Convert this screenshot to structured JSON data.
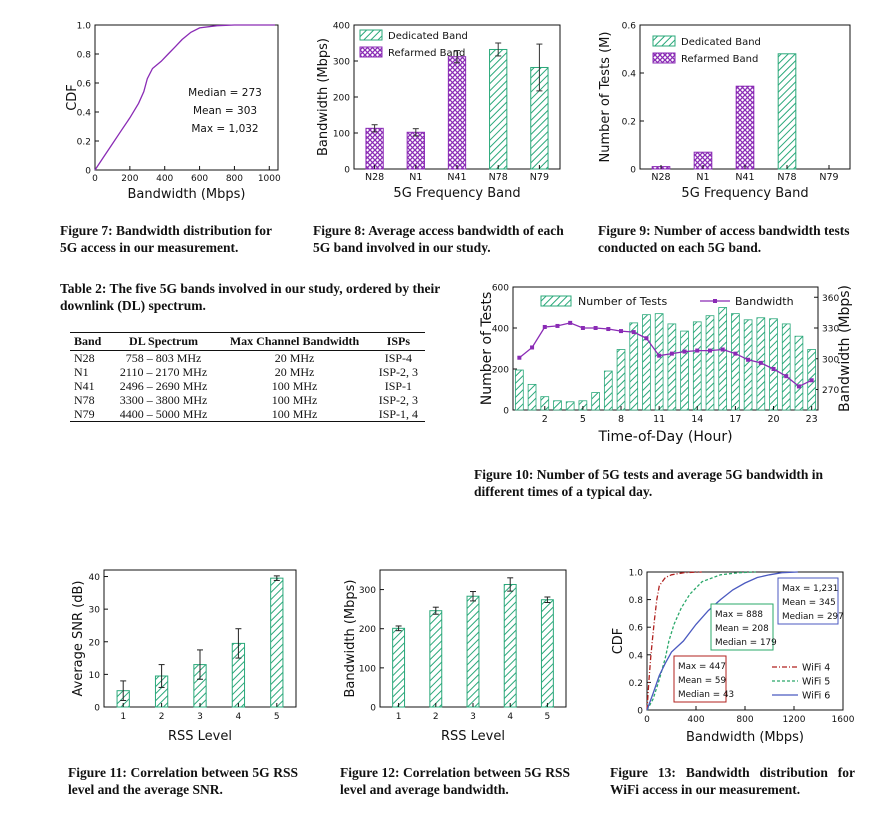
{
  "captions": {
    "fig7": "Figure 7: Bandwidth distribution for 5G access in our measurement.",
    "fig8": "Figure 8: Average access bandwidth of each 5G band involved in our study.",
    "fig9": "Figure 9: Number of access bandwidth tests conducted on each 5G band.",
    "table2": "Table 2: The five 5G bands involved in our study, ordered by their downlink (DL) spectrum.",
    "fig10": "Figure 10: Number of 5G tests and average 5G bandwidth in different times of a typical day.",
    "fig11": "Figure 11: Correlation between 5G RSS level and the average SNR.",
    "fig12": "Figure 12: Correlation between 5G RSS level and average bandwidth.",
    "fig13": "Figure 13: Bandwidth distribution for WiFi access in our measurement."
  },
  "table2": {
    "headers": [
      "Band",
      "DL Spectrum",
      "Max Channel Bandwidth",
      "ISPs"
    ],
    "rows": [
      [
        "N28",
        "758 – 803 MHz",
        "20 MHz",
        "ISP-4"
      ],
      [
        "N1",
        "2110 – 2170 MHz",
        "20 MHz",
        "ISP-2, 3"
      ],
      [
        "N41",
        "2496 – 2690 MHz",
        "100 MHz",
        "ISP-1"
      ],
      [
        "N78",
        "3300 – 3800 MHz",
        "100 MHz",
        "ISP-2, 3"
      ],
      [
        "N79",
        "4400 – 5000 MHz",
        "100 MHz",
        "ISP-1, 4"
      ]
    ]
  },
  "colors": {
    "green": "#2aa87a",
    "purple": "#8a2bb5"
  },
  "chart_data": [
    {
      "id": "fig7",
      "type": "line",
      "xlabel": "Bandwidth (Mbps)",
      "ylabel": "CDF",
      "xlim": [
        0,
        1050
      ],
      "ylim": [
        0,
        1.0
      ],
      "xticks": [
        0,
        200,
        400,
        600,
        800,
        1000
      ],
      "yticks": [
        0,
        0.2,
        0.4,
        0.6,
        0.8,
        1.0
      ],
      "ytick_labels": [
        "0",
        "0.2",
        "0.4",
        "0.6",
        "0.8",
        "1.0"
      ],
      "x": [
        0,
        50,
        100,
        150,
        200,
        250,
        280,
        300,
        330,
        380,
        420,
        460,
        500,
        550,
        600,
        700,
        800,
        900,
        1032
      ],
      "y": [
        0,
        0.09,
        0.18,
        0.27,
        0.36,
        0.46,
        0.54,
        0.63,
        0.7,
        0.75,
        0.8,
        0.85,
        0.9,
        0.95,
        0.98,
        0.995,
        1.0,
        1.0,
        1.0
      ],
      "annotations": [
        "Median = 273",
        "Mean = 303",
        "Max = 1,032"
      ],
      "color": "#8a2bb5"
    },
    {
      "id": "fig8",
      "type": "bar",
      "xlabel": "5G Frequency Band",
      "ylabel": "Bandwidth (Mbps)",
      "ylim": [
        0,
        400
      ],
      "yticks": [
        0,
        100,
        200,
        300,
        400
      ],
      "categories": [
        "N28",
        "N1",
        "N41",
        "N78",
        "N79"
      ],
      "values": [
        113,
        102,
        312,
        332,
        282
      ],
      "errors": [
        10,
        10,
        17,
        18,
        65
      ],
      "band_type": [
        "refarmed",
        "refarmed",
        "refarmed",
        "dedicated",
        "dedicated"
      ],
      "legend": [
        "Dedicated Band",
        "Refarmed Band"
      ]
    },
    {
      "id": "fig9",
      "type": "bar",
      "xlabel": "5G Frequency Band",
      "ylabel": "Number of Tests (M)",
      "ylim": [
        0,
        0.6
      ],
      "yticks": [
        0,
        0.2,
        0.4,
        0.6
      ],
      "ytick_labels": [
        "0",
        "0.2",
        "0.4",
        "0.6"
      ],
      "categories": [
        "N28",
        "N1",
        "N41",
        "N78",
        "N79"
      ],
      "values": [
        0.01,
        0.07,
        0.345,
        0.48,
        0
      ],
      "band_type": [
        "refarmed",
        "refarmed",
        "refarmed",
        "dedicated",
        "dedicated"
      ],
      "legend": [
        "Dedicated Band",
        "Refarmed Band"
      ]
    },
    {
      "id": "fig10",
      "type": "bar",
      "xlabel": "Time-of-Day (Hour)",
      "ylabel": "Number of Tests",
      "y2label": "Bandwidth (Mbps)",
      "ylim": [
        0,
        600
      ],
      "yticks": [
        0,
        200,
        400,
        600
      ],
      "y2lim": [
        250,
        370
      ],
      "y2ticks": [
        270,
        300,
        330,
        360
      ],
      "xticks": [
        2,
        5,
        8,
        11,
        14,
        17,
        20,
        23
      ],
      "hours": [
        0,
        1,
        2,
        3,
        4,
        5,
        6,
        7,
        8,
        9,
        10,
        11,
        12,
        13,
        14,
        15,
        16,
        17,
        18,
        19,
        20,
        21,
        22,
        23
      ],
      "tests": [
        195,
        125,
        65,
        45,
        40,
        45,
        85,
        190,
        295,
        425,
        465,
        470,
        420,
        385,
        430,
        460,
        500,
        470,
        440,
        450,
        445,
        420,
        360,
        295
      ],
      "bandwidth": [
        301,
        311,
        331,
        332,
        335,
        330,
        330,
        329,
        327,
        326,
        320,
        303,
        305,
        307,
        308,
        308,
        309,
        305,
        299,
        296,
        290,
        283,
        273,
        279
      ],
      "legend": [
        "Number of Tests",
        "Bandwidth"
      ]
    },
    {
      "id": "fig11",
      "type": "bar",
      "xlabel": "RSS Level",
      "ylabel": "Average SNR (dB)",
      "ylim": [
        0,
        42
      ],
      "yticks": [
        0,
        10,
        20,
        30,
        40
      ],
      "categories": [
        "1",
        "2",
        "3",
        "4",
        "5"
      ],
      "values": [
        5,
        9.5,
        13,
        19.5,
        39.5
      ],
      "errors": [
        3,
        3.5,
        4.5,
        4.5,
        0.7
      ]
    },
    {
      "id": "fig12",
      "type": "bar",
      "xlabel": "RSS Level",
      "ylabel": "Bandwidth (Mbps)",
      "ylim": [
        0,
        350
      ],
      "yticks": [
        0,
        100,
        200,
        300
      ],
      "categories": [
        "1",
        "2",
        "3",
        "4",
        "5"
      ],
      "values": [
        201,
        246,
        283,
        313,
        274
      ],
      "errors": [
        6,
        9,
        12,
        17,
        7
      ]
    },
    {
      "id": "fig13",
      "type": "line",
      "xlabel": "Bandwidth (Mbps)",
      "ylabel": "CDF",
      "xlim": [
        0,
        1600
      ],
      "ylim": [
        0,
        1.0
      ],
      "xticks": [
        0,
        400,
        800,
        1200,
        1600
      ],
      "yticks": [
        0,
        0.2,
        0.4,
        0.6,
        0.8,
        1.0
      ],
      "ytick_labels": [
        "0",
        "0.2",
        "0.4",
        "0.6",
        "0.8",
        "1.0"
      ],
      "series": [
        {
          "name": "WiFi 4",
          "color": "#b0201e",
          "x": [
            0,
            15,
            30,
            43,
            60,
            80,
            100,
            150,
            200,
            300,
            447
          ],
          "y": [
            0,
            0.2,
            0.38,
            0.5,
            0.65,
            0.8,
            0.9,
            0.96,
            0.98,
            0.995,
            1.0
          ],
          "stats": [
            "Max = 447",
            "Mean = 59",
            "Median = 43"
          ]
        },
        {
          "name": "WiFi 5",
          "color": "#2aa86a",
          "x": [
            0,
            50,
            100,
            150,
            179,
            220,
            280,
            350,
            450,
            600,
            750,
            888
          ],
          "y": [
            0,
            0.08,
            0.22,
            0.38,
            0.5,
            0.62,
            0.74,
            0.84,
            0.93,
            0.98,
            0.995,
            1.0
          ],
          "stats": [
            "Max = 888",
            "Mean = 208",
            "Median = 179"
          ]
        },
        {
          "name": "WiFi 6",
          "color": "#4b5ac0",
          "x": [
            0,
            50,
            100,
            150,
            200,
            297,
            400,
            500,
            600,
            700,
            800,
            900,
            1000,
            1100,
            1231
          ],
          "y": [
            0,
            0.12,
            0.25,
            0.34,
            0.42,
            0.5,
            0.62,
            0.72,
            0.8,
            0.87,
            0.92,
            0.96,
            0.98,
            0.995,
            1.0
          ],
          "stats": [
            "Max = 1,231",
            "Mean = 345",
            "Median = 297"
          ]
        }
      ]
    }
  ]
}
